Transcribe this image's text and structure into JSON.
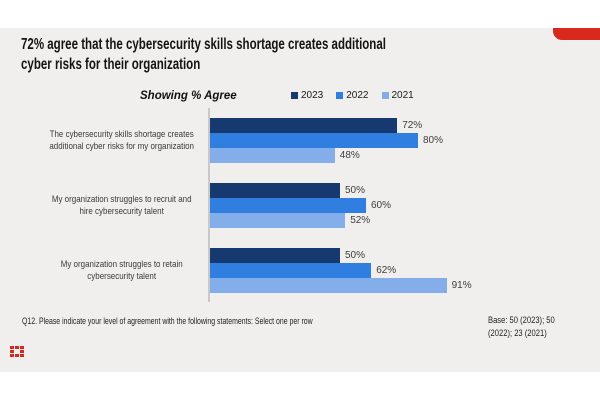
{
  "slide": {
    "title": "72% agree that the cybersecurity skills shortage creates additional cyber risks for their organization",
    "title_lines": [
      "72% agree that the cybersecurity skills shortage creates additional",
      "cyber risks for their organization"
    ],
    "footer_question": "Q12.  Please indicate your level of agreement with the following statements: Select one per row",
    "base_note": "Base: 50 (2023); 50 (2022); 23 (2021)",
    "base_note_lines": [
      "Base: 50 (2023); 50",
      "(2022); 23 (2021)"
    ],
    "accent_color": "#d9291e",
    "background_color": "#f0efed"
  },
  "chart_data": {
    "type": "bar",
    "orientation": "horizontal",
    "subtitle": "Showing % Agree",
    "legend_position": "top",
    "grid": false,
    "xlim": [
      0,
      100
    ],
    "value_suffix": "%",
    "categories": [
      "The cybersecurity skills shortage creates additional cyber risks for my organization",
      "My organization struggles to recruit and hire cybersecurity talent",
      "My organization struggles to retain cybersecurity talent"
    ],
    "category_lines": [
      [
        "The cybersecurity skills shortage creates",
        "additional cyber risks for my organization"
      ],
      [
        "My organization struggles to recruit and",
        "hire cybersecurity talent"
      ],
      [
        "My organization struggles to retain",
        "cybersecurity talent"
      ]
    ],
    "series": [
      {
        "name": "2023",
        "color": "#163a6f",
        "values": [
          72,
          50,
          50
        ]
      },
      {
        "name": "2022",
        "color": "#2f7ee0",
        "values": [
          80,
          60,
          62
        ]
      },
      {
        "name": "2021",
        "color": "#83aeea",
        "values": [
          48,
          52,
          91
        ]
      }
    ]
  }
}
